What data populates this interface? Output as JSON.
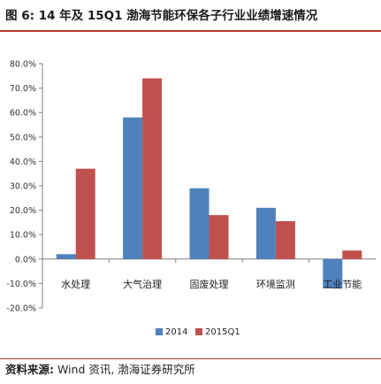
{
  "figure": {
    "title": "图 6:  14 年及 15Q1 渤海节能环保各子行业业绩增速情况",
    "source_label": "资料来源:",
    "source_text": " Wind 资讯, 渤海证券研究所"
  },
  "colors": {
    "series_2014": "#4f81bd",
    "series_2015Q1": "#c0504d",
    "accent_rule": "#b0392b"
  },
  "chart_data": {
    "type": "bar",
    "categories": [
      "水处理",
      "大气治理",
      "固废处理",
      "环境监测",
      "工业节能"
    ],
    "series": [
      {
        "name": "2014",
        "values": [
          2.0,
          58.0,
          29.0,
          21.0,
          -12.0
        ]
      },
      {
        "name": "2015Q1",
        "values": [
          37.0,
          74.0,
          18.0,
          15.5,
          3.5
        ]
      }
    ],
    "y_ticks": [
      "80.0%",
      "70.0%",
      "60.0%",
      "50.0%",
      "40.0%",
      "30.0%",
      "20.0%",
      "10.0%",
      "0.0%",
      "-10.0%",
      "-20.0%"
    ],
    "ylim": [
      -20,
      80
    ],
    "y_unit": "%",
    "legend_position": "bottom-center",
    "grid": false
  }
}
